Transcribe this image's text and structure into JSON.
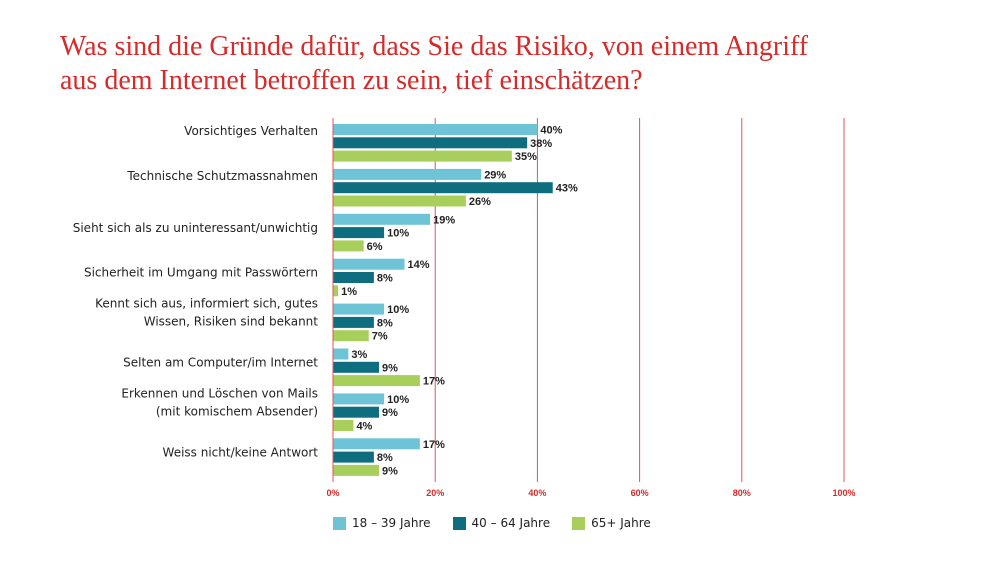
{
  "title_lines": [
    "Was sind die Gründe dafür, dass Sie das Risiko, von einem Angriff",
    "aus dem Internet betroffen zu sein, tief einschätzen?"
  ],
  "chart_data": {
    "type": "bar",
    "orientation": "horizontal",
    "categories": [
      [
        "Vorsichtiges Verhalten"
      ],
      [
        "Technische Schutzmassnahmen"
      ],
      [
        "Sieht sich als zu uninteressant/unwichtig"
      ],
      [
        "Sicherheit im Umgang mit Passwörtern"
      ],
      [
        "Kennt sich aus, informiert sich, gutes",
        "Wissen, Risiken sind bekannt"
      ],
      [
        "Selten am Computer/im Internet"
      ],
      [
        "Erkennen und Löschen von Mails",
        "(mit komischem Absender)"
      ],
      [
        "Weiss nicht/keine Antwort"
      ]
    ],
    "series": [
      {
        "name": "18 – 39 Jahre",
        "color": "#6ec4d6",
        "values": [
          40,
          29,
          19,
          14,
          10,
          3,
          10,
          17
        ]
      },
      {
        "name": "40 – 64 Jahre",
        "color": "#0e6e80",
        "values": [
          38,
          43,
          10,
          8,
          8,
          9,
          9,
          8
        ]
      },
      {
        "name": "65+ Jahre",
        "color": "#a8cf5b",
        "values": [
          35,
          26,
          6,
          1,
          7,
          17,
          4,
          9
        ]
      }
    ],
    "value_suffix": "%",
    "xlim": [
      0,
      100
    ],
    "x_ticks": [
      "0%",
      "20%",
      "40%",
      "60%",
      "80%",
      "100%"
    ],
    "x_tick_values": [
      0,
      20,
      40,
      60,
      80,
      100
    ],
    "gridlines": true,
    "gridline_color": "#e05555",
    "legend_position": "bottom"
  }
}
